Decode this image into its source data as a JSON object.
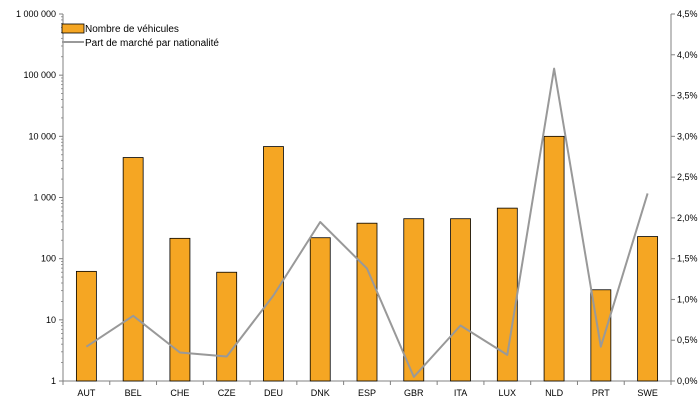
{
  "chart_data": {
    "type": "bar",
    "categories": [
      "AUT",
      "BEL",
      "CHE",
      "CZE",
      "DEU",
      "DNK",
      "ESP",
      "GBR",
      "ITA",
      "LUX",
      "NLD",
      "PRT",
      "SWE"
    ],
    "series": [
      {
        "name": "Nombre de véhicules",
        "type": "bar",
        "axis": "left",
        "values": [
          62,
          4500,
          215,
          60,
          6800,
          220,
          380,
          450,
          450,
          670,
          10000,
          31,
          230
        ]
      },
      {
        "name": "Part de marché par nationalité",
        "type": "line",
        "axis": "right",
        "values": [
          0.42,
          0.8,
          0.35,
          0.3,
          1.05,
          1.95,
          1.38,
          0.05,
          0.68,
          0.32,
          3.83,
          0.42,
          2.3
        ]
      }
    ],
    "y_left": {
      "scale": "log",
      "range": [
        1,
        1000000
      ],
      "ticks": [
        1,
        10,
        100,
        1000,
        10000,
        100000,
        1000000
      ],
      "tick_labels": [
        "1",
        "10",
        "100",
        "1 000",
        "10 000",
        "100 000",
        "1 000 000"
      ]
    },
    "y_right": {
      "scale": "linear",
      "range": [
        0,
        4.5
      ],
      "unit": "%",
      "ticks": [
        0,
        0.5,
        1.0,
        1.5,
        2.0,
        2.5,
        3.0,
        3.5,
        4.0,
        4.5
      ],
      "tick_labels": [
        "0,0%",
        "0,5%",
        "1,0%",
        "1,5%",
        "2,0%",
        "2,5%",
        "3,0%",
        "3,5%",
        "4,0%",
        "4,5%"
      ]
    },
    "legend": {
      "position": "top-left"
    },
    "grid": false,
    "colors": {
      "bar_fill": "#F5A623",
      "bar_stroke": "#000000",
      "line": "#999999",
      "axis": "#808080"
    }
  }
}
